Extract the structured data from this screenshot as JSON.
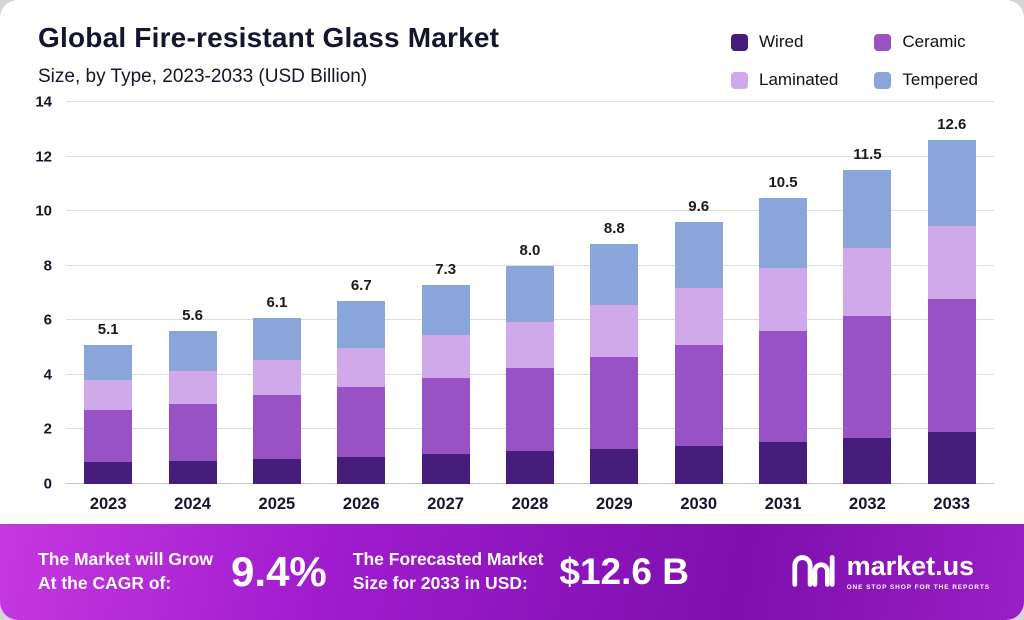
{
  "header": {
    "title": "Global Fire-resistant Glass Market",
    "subtitle": "Size, by Type, 2023-2033 (USD Billion)"
  },
  "chart_data": {
    "type": "bar",
    "stacked": true,
    "title": "Global Fire-resistant Glass Market",
    "subtitle": "Size, by Type, 2023-2033 (USD Billion)",
    "categories": [
      "2023",
      "2024",
      "2025",
      "2026",
      "2027",
      "2028",
      "2029",
      "2030",
      "2031",
      "2032",
      "2033"
    ],
    "series": [
      {
        "name": "Wired",
        "color": "#471d7c",
        "values": [
          0.8,
          0.85,
          0.9,
          1.0,
          1.1,
          1.2,
          1.3,
          1.4,
          1.55,
          1.7,
          1.9
        ]
      },
      {
        "name": "Ceramic",
        "color": "#9852c6",
        "values": [
          1.9,
          2.1,
          2.35,
          2.55,
          2.8,
          3.05,
          3.35,
          3.7,
          4.05,
          4.45,
          4.9
        ]
      },
      {
        "name": "Laminated",
        "color": "#cfa9e9",
        "values": [
          1.1,
          1.2,
          1.3,
          1.45,
          1.55,
          1.7,
          1.9,
          2.1,
          2.3,
          2.5,
          2.65
        ]
      },
      {
        "name": "Tempered",
        "color": "#8aa5da",
        "values": [
          1.3,
          1.45,
          1.55,
          1.7,
          1.85,
          2.05,
          2.25,
          2.4,
          2.6,
          2.85,
          3.15
        ]
      }
    ],
    "totals": [
      "5.1",
      "5.6",
      "6.1",
      "6.7",
      "7.3",
      "8.0",
      "8.8",
      "9.6",
      "10.5",
      "11.5",
      "12.6"
    ],
    "ylim": [
      0,
      14
    ],
    "yticks": [
      0,
      2,
      4,
      6,
      8,
      10,
      12,
      14
    ],
    "grid": "horizontal",
    "legend_position": "top-right"
  },
  "banner": {
    "cagr_label_line1": "The Market will Grow",
    "cagr_label_line2": "At the CAGR of:",
    "cagr_value": "9.4%",
    "forecast_label_line1": "The Forecasted Market",
    "forecast_label_line2": "Size for 2033 in USD:",
    "forecast_value": "$12.6 B",
    "brand": "market.us",
    "brand_tagline": "ONE STOP SHOP FOR THE REPORTS"
  }
}
